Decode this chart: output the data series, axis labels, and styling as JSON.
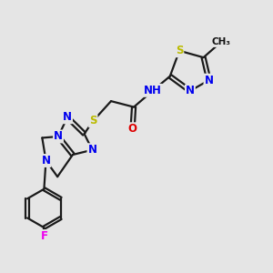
{
  "bg": "#e5e5e5",
  "bond_color": "#1a1a1a",
  "bw": 1.6,
  "dbo": 0.055,
  "colors": {
    "N": "#0000ee",
    "O": "#dd0000",
    "S": "#bbbb00",
    "F": "#ee00ee",
    "H": "#007070",
    "C": "#111111"
  },
  "fs": 8.5
}
